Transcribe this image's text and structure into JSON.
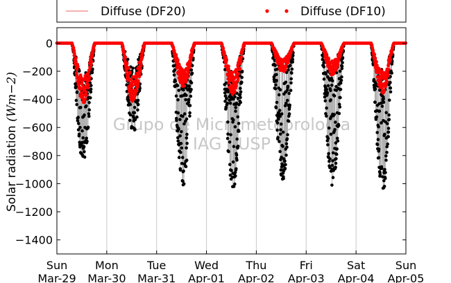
{
  "chart_data": {
    "type": "line",
    "title": "",
    "xlabel": "",
    "ylabel": "Solar radiation",
    "ylabel_units": "(Wm−2)",
    "ylim": [
      -1500,
      110
    ],
    "yticks": [
      0,
      -200,
      -400,
      -600,
      -800,
      -1000,
      -1200,
      -1400
    ],
    "xlim": [
      "2015-03-29",
      "2015-04-05"
    ],
    "xticks": [
      {
        "day": "Sun",
        "date": "Mar-29"
      },
      {
        "day": "Mon",
        "date": "Mar-30"
      },
      {
        "day": "Tue",
        "date": "Mar-31"
      },
      {
        "day": "Wed",
        "date": "Apr-01"
      },
      {
        "day": "Thu",
        "date": "Apr-02"
      },
      {
        "day": "Fri",
        "date": "Apr-03"
      },
      {
        "day": "Sat",
        "date": "Apr-04"
      },
      {
        "day": "Sun",
        "date": "Apr-05"
      }
    ],
    "grid": "vertical",
    "legend_position": "top",
    "watermark": [
      "Grupo de Micrometeorologia",
      "IAG / USP"
    ],
    "series": [
      {
        "name": "Diffuse (DF20)",
        "style": "line",
        "color": "#f08080",
        "daily_min": [
          -430,
          -420,
          -310,
          -370,
          -210,
          -230,
          -360
        ]
      },
      {
        "name": "Diffuse (DF10)",
        "style": "dots",
        "color": "#ff0000",
        "daily_min": [
          -430,
          -420,
          -310,
          -370,
          -210,
          -230,
          -360
        ]
      },
      {
        "name": "",
        "style": "dots",
        "color": "#000000",
        "daily_min": [
          -860,
          -640,
          -1020,
          -1050,
          -970,
          -1040,
          -1080
        ]
      }
    ]
  }
}
